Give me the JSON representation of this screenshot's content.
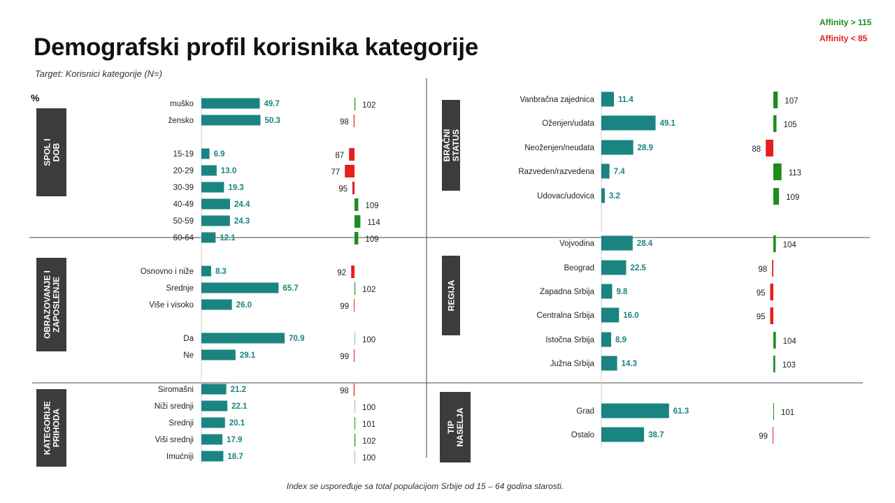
{
  "title": "Demografski profil korisnika kategorije",
  "subtitle": "Target: Korisnici kategorije (N=)",
  "unit_label": "%",
  "legend": {
    "high_label": "Affinity > 115",
    "low_label": "Affinity < 85",
    "high_color": "#1e8c1e",
    "low_color": "#e81d1d"
  },
  "footnote": "Index se uspoređuje sa total populacijom Srbije od 15 – 64 godina starosti.",
  "colors": {
    "bar": "#1a8580",
    "value_text": "#1a8580",
    "section_box": "#3c3c3c",
    "index_positive": "#1e8c1e",
    "index_negative": "#e81d1d"
  },
  "chart_data": {
    "type": "bar",
    "orientation": "horizontal",
    "index_baseline": 100,
    "sections": [
      {
        "title": "SPOL I DOB",
        "categories": [
          "muško",
          "žensko",
          "15-19",
          "20-29",
          "30-39",
          "40-49",
          "50-59",
          "60-64"
        ],
        "values": [
          49.7,
          50.3,
          6.9,
          13.0,
          19.3,
          24.4,
          24.3,
          12.1
        ],
        "value_labels": [
          "49.7",
          "50.3",
          "6.9",
          "13.0",
          "19.3",
          "24.4",
          "24.3",
          "12.1"
        ],
        "index": [
          102,
          98,
          87,
          77,
          95,
          109,
          114,
          109
        ]
      },
      {
        "title": "OBRAZOVANJE I ZAPOSLENJE",
        "categories": [
          "Osnovno i niže",
          "Srednje",
          "Više i visoko",
          "Da",
          "Ne"
        ],
        "values": [
          8.3,
          65.7,
          26.0,
          70.9,
          29.1
        ],
        "value_labels": [
          "8.3",
          "65.7",
          "26.0",
          "70.9",
          "29.1"
        ],
        "index": [
          92,
          102,
          99,
          100,
          99
        ]
      },
      {
        "title": "KATEGORIJE PRIHODA",
        "categories": [
          "Siromašni",
          "Niži srednji",
          "Srednji",
          "Viši srednji",
          "Imućniji"
        ],
        "values": [
          21.2,
          22.1,
          20.1,
          17.9,
          18.7
        ],
        "value_labels": [
          "21.2",
          "22.1",
          "20.1",
          "17.9",
          "18.7"
        ],
        "index": [
          98,
          100,
          101,
          102,
          100
        ]
      },
      {
        "title": "BRAČNI STATUS",
        "categories": [
          "Vanbračna zajednica",
          "Oženjen/udata",
          "Neoženjen/neudata",
          "Razveden/razvedena",
          "Udovac/udovica"
        ],
        "values": [
          11.4,
          49.1,
          28.9,
          7.4,
          3.2
        ],
        "value_labels": [
          "11.4",
          "49.1",
          "28.9",
          "7.4",
          "3.2"
        ],
        "index": [
          107,
          105,
          88,
          113,
          109
        ]
      },
      {
        "title": "REGIJA",
        "categories": [
          "Vojvodina",
          "Beograd",
          "Zapadna Srbija",
          "Centralna Srbija",
          "Istočna Srbija",
          "Južna Srbija"
        ],
        "values": [
          28.4,
          22.5,
          9.8,
          16.0,
          8.9,
          14.3
        ],
        "value_labels": [
          "28.4",
          "22.5",
          "9.8",
          "16.0",
          "8.9",
          "14.3"
        ],
        "index": [
          104,
          98,
          95,
          95,
          104,
          103
        ]
      },
      {
        "title": "TIP NASELJA",
        "categories": [
          "Grad",
          "Ostalo"
        ],
        "values": [
          61.3,
          38.7
        ],
        "value_labels": [
          "61.3",
          "38.7"
        ],
        "index": [
          101,
          99
        ]
      }
    ]
  }
}
